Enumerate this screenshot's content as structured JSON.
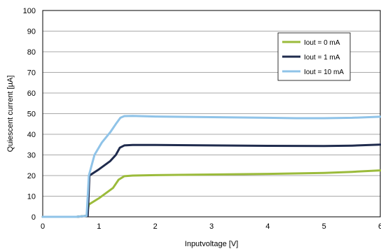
{
  "chart_data": {
    "type": "line",
    "xlabel": "Inputvoltage [V]",
    "ylabel": "Quiescent current [µA]",
    "xlim": [
      0,
      6
    ],
    "ylim": [
      0,
      100
    ],
    "xticks": [
      0,
      1,
      2,
      3,
      4,
      5,
      6
    ],
    "yticks": [
      0,
      10,
      20,
      30,
      40,
      50,
      60,
      70,
      80,
      90,
      100
    ],
    "grid": "horizontal",
    "legend_position": "top-right",
    "series": [
      {
        "name": "Iout = 0 mA",
        "color": "#9bbb3b",
        "points": [
          [
            0,
            0
          ],
          [
            0.6,
            0
          ],
          [
            0.78,
            0.5
          ],
          [
            0.82,
            6
          ],
          [
            1.0,
            9
          ],
          [
            1.25,
            14
          ],
          [
            1.35,
            18
          ],
          [
            1.45,
            19.7
          ],
          [
            1.6,
            20
          ],
          [
            2.0,
            20.2
          ],
          [
            3.0,
            20.5
          ],
          [
            4.0,
            20.8
          ],
          [
            5.0,
            21.3
          ],
          [
            5.5,
            21.8
          ],
          [
            6.0,
            22.5
          ]
        ]
      },
      {
        "name": "Iout = 1 mA",
        "color": "#1f2b4d",
        "points": [
          [
            0,
            0
          ],
          [
            0.6,
            0
          ],
          [
            0.8,
            0.5
          ],
          [
            0.83,
            20
          ],
          [
            1.0,
            23
          ],
          [
            1.2,
            27
          ],
          [
            1.3,
            30
          ],
          [
            1.37,
            33.5
          ],
          [
            1.45,
            34.6
          ],
          [
            1.6,
            34.8
          ],
          [
            2.0,
            34.8
          ],
          [
            3.0,
            34.6
          ],
          [
            4.0,
            34.4
          ],
          [
            5.0,
            34.3
          ],
          [
            5.5,
            34.5
          ],
          [
            6.0,
            35
          ]
        ]
      },
      {
        "name": "Iout = 10 mA",
        "color": "#8fc3e8",
        "points": [
          [
            0,
            0
          ],
          [
            0.6,
            0
          ],
          [
            0.78,
            0.5
          ],
          [
            0.82,
            20
          ],
          [
            0.92,
            30
          ],
          [
            1.05,
            36
          ],
          [
            1.2,
            41
          ],
          [
            1.3,
            45
          ],
          [
            1.38,
            48
          ],
          [
            1.45,
            48.8
          ],
          [
            1.6,
            48.9
          ],
          [
            2.0,
            48.6
          ],
          [
            3.0,
            48.3
          ],
          [
            4.0,
            48
          ],
          [
            4.5,
            47.8
          ],
          [
            5.0,
            47.8
          ],
          [
            5.5,
            48
          ],
          [
            6.0,
            48.5
          ]
        ]
      }
    ]
  }
}
